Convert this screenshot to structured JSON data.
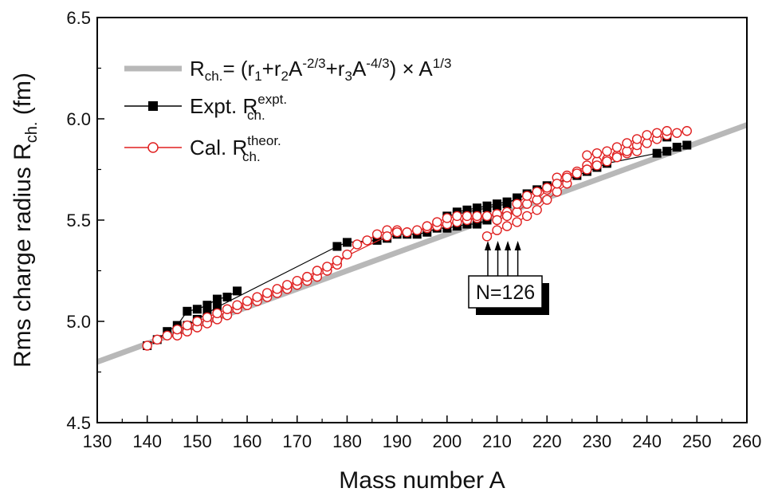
{
  "chart_data": {
    "type": "scatter",
    "xlabel": "Mass number A",
    "ylabel_main": "Rms charge radius R",
    "ylabel_sub": "ch.",
    "ylabel_unit": "(fm)",
    "xlim": [
      130,
      260
    ],
    "ylim": [
      4.5,
      6.5
    ],
    "xticks": [
      130,
      140,
      150,
      160,
      170,
      180,
      190,
      200,
      210,
      220,
      230,
      240,
      250,
      260
    ],
    "yticks": [
      4.5,
      5.0,
      5.5,
      6.0,
      6.5
    ],
    "ytick_labels": [
      "4.5",
      "5.0",
      "5.5",
      "6.0",
      "6.5"
    ],
    "legend": {
      "fit": {
        "R": "R",
        "sub": "ch.",
        "eq1": "= (r",
        "s1": "1",
        "eq2": "+r",
        "s2": "2",
        "eq3": "A",
        "p1": "-2/3",
        "eq4": "+r",
        "s3": "3",
        "eq5": "A",
        "p2": "-4/3",
        "eq6": ") × A",
        "p3": "1/3"
      },
      "expt": {
        "label": "Expt. R",
        "sup": "expt.",
        "sub": "ch."
      },
      "cal": {
        "label": "Cal. R",
        "sup": "theor.",
        "sub": "ch."
      }
    },
    "annotation": {
      "text": "N=126",
      "arrow_x": [
        208,
        210,
        212,
        214
      ]
    },
    "colors": {
      "fit": "#b8b8b8",
      "expt": "#000000",
      "cal": "#e02020"
    },
    "fit_line": {
      "x": [
        130,
        260
      ],
      "y": [
        4.8,
        5.97
      ]
    },
    "series": [
      {
        "name": "Expt.",
        "points": [
          [
            140,
            4.88
          ],
          [
            142,
            4.91
          ],
          [
            144,
            4.95
          ],
          [
            146,
            4.98
          ],
          [
            148,
            5.05
          ],
          [
            150,
            5.06
          ],
          [
            152,
            5.08
          ],
          [
            154,
            5.11
          ],
          [
            156,
            5.12
          ],
          [
            158,
            5.15
          ],
          [
            146,
            4.96
          ],
          [
            148,
            4.98
          ],
          [
            150,
            5.01
          ],
          [
            152,
            5.04
          ],
          [
            154,
            5.07
          ],
          [
            178,
            5.37
          ],
          [
            180,
            5.39
          ],
          [
            186,
            5.4
          ],
          [
            188,
            5.41
          ],
          [
            190,
            5.43
          ],
          [
            192,
            5.43
          ],
          [
            194,
            5.43
          ],
          [
            196,
            5.44
          ],
          [
            198,
            5.46
          ],
          [
            200,
            5.46
          ],
          [
            202,
            5.47
          ],
          [
            204,
            5.48
          ],
          [
            206,
            5.48
          ],
          [
            208,
            5.5
          ],
          [
            202,
            5.54
          ],
          [
            204,
            5.55
          ],
          [
            206,
            5.56
          ],
          [
            208,
            5.57
          ],
          [
            210,
            5.58
          ],
          [
            212,
            5.59
          ],
          [
            214,
            5.6
          ],
          [
            216,
            5.63
          ],
          [
            218,
            5.65
          ],
          [
            220,
            5.67
          ],
          [
            200,
            5.52
          ],
          [
            202,
            5.53
          ],
          [
            204,
            5.54
          ],
          [
            206,
            5.55
          ],
          [
            208,
            5.56
          ],
          [
            210,
            5.57
          ],
          [
            212,
            5.58
          ],
          [
            214,
            5.61
          ],
          [
            226,
            5.72
          ],
          [
            228,
            5.74
          ],
          [
            230,
            5.76
          ],
          [
            232,
            5.78
          ],
          [
            242,
            5.83
          ],
          [
            244,
            5.84
          ],
          [
            246,
            5.86
          ],
          [
            248,
            5.87
          ],
          [
            244,
            5.91
          ]
        ]
      },
      {
        "name": "Cal.",
        "points": [
          [
            140,
            4.88
          ],
          [
            142,
            4.91
          ],
          [
            144,
            4.93
          ],
          [
            146,
            4.93
          ],
          [
            148,
            4.95
          ],
          [
            150,
            4.97
          ],
          [
            152,
            4.99
          ],
          [
            154,
            5.01
          ],
          [
            156,
            5.03
          ],
          [
            158,
            5.06
          ],
          [
            160,
            5.08
          ],
          [
            162,
            5.1
          ],
          [
            164,
            5.12
          ],
          [
            166,
            5.14
          ],
          [
            168,
            5.16
          ],
          [
            170,
            5.18
          ],
          [
            172,
            5.2
          ],
          [
            174,
            5.22
          ],
          [
            176,
            5.25
          ],
          [
            178,
            5.28
          ],
          [
            180,
            5.33
          ],
          [
            182,
            5.38
          ],
          [
            184,
            5.4
          ],
          [
            186,
            5.43
          ],
          [
            188,
            5.45
          ],
          [
            190,
            5.45
          ],
          [
            146,
            4.96
          ],
          [
            148,
            4.98
          ],
          [
            150,
            5.0
          ],
          [
            152,
            5.02
          ],
          [
            154,
            5.04
          ],
          [
            156,
            5.06
          ],
          [
            158,
            5.08
          ],
          [
            160,
            5.1
          ],
          [
            162,
            5.12
          ],
          [
            164,
            5.14
          ],
          [
            166,
            5.16
          ],
          [
            168,
            5.18
          ],
          [
            170,
            5.2
          ],
          [
            172,
            5.22
          ],
          [
            174,
            5.25
          ],
          [
            176,
            5.27
          ],
          [
            178,
            5.3
          ],
          [
            188,
            5.42
          ],
          [
            190,
            5.44
          ],
          [
            192,
            5.44
          ],
          [
            194,
            5.45
          ],
          [
            196,
            5.46
          ],
          [
            198,
            5.47
          ],
          [
            200,
            5.48
          ],
          [
            202,
            5.49
          ],
          [
            204,
            5.5
          ],
          [
            206,
            5.51
          ],
          [
            208,
            5.52
          ],
          [
            196,
            5.47
          ],
          [
            198,
            5.49
          ],
          [
            200,
            5.51
          ],
          [
            202,
            5.52
          ],
          [
            204,
            5.52
          ],
          [
            206,
            5.52
          ],
          [
            208,
            5.52
          ],
          [
            210,
            5.53
          ],
          [
            212,
            5.54
          ],
          [
            208,
            5.42
          ],
          [
            210,
            5.45
          ],
          [
            212,
            5.47
          ],
          [
            214,
            5.49
          ],
          [
            216,
            5.52
          ],
          [
            218,
            5.55
          ],
          [
            220,
            5.6
          ],
          [
            222,
            5.64
          ],
          [
            224,
            5.68
          ],
          [
            210,
            5.5
          ],
          [
            212,
            5.52
          ],
          [
            214,
            5.54
          ],
          [
            216,
            5.58
          ],
          [
            218,
            5.6
          ],
          [
            220,
            5.65
          ],
          [
            222,
            5.71
          ],
          [
            224,
            5.72
          ],
          [
            226,
            5.74
          ],
          [
            228,
            5.77
          ],
          [
            230,
            5.79
          ],
          [
            232,
            5.8
          ],
          [
            234,
            5.82
          ],
          [
            236,
            5.83
          ],
          [
            238,
            5.84
          ],
          [
            214,
            5.58
          ],
          [
            216,
            5.62
          ],
          [
            218,
            5.64
          ],
          [
            220,
            5.66
          ],
          [
            222,
            5.68
          ],
          [
            224,
            5.71
          ],
          [
            226,
            5.73
          ],
          [
            228,
            5.75
          ],
          [
            230,
            5.77
          ],
          [
            232,
            5.79
          ],
          [
            234,
            5.81
          ],
          [
            236,
            5.84
          ],
          [
            238,
            5.87
          ],
          [
            240,
            5.88
          ],
          [
            242,
            5.9
          ],
          [
            244,
            5.92
          ],
          [
            246,
            5.93
          ],
          [
            248,
            5.94
          ],
          [
            228,
            5.82
          ],
          [
            230,
            5.83
          ],
          [
            232,
            5.84
          ],
          [
            234,
            5.86
          ],
          [
            236,
            5.88
          ],
          [
            238,
            5.9
          ],
          [
            240,
            5.92
          ],
          [
            242,
            5.93
          ],
          [
            244,
            5.94
          ]
        ]
      }
    ]
  }
}
